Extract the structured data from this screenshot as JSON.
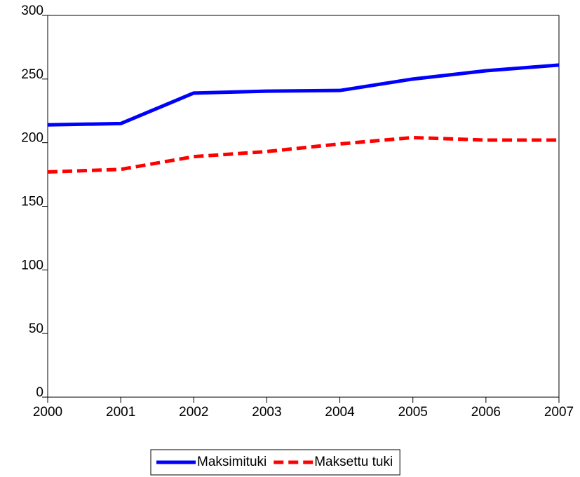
{
  "chart_data": {
    "type": "line",
    "x": [
      2000,
      2001,
      2002,
      2003,
      2004,
      2005,
      2006,
      2007
    ],
    "series": [
      {
        "name": "Maksimituki",
        "color": "#0000ff",
        "values": [
          214,
          215,
          239,
          240.5,
          241,
          250,
          256.5,
          261
        ]
      },
      {
        "name": "Maksettu tuki",
        "color": "#ff0000",
        "dashed": true,
        "values": [
          177,
          179,
          189,
          193,
          199,
          204,
          202,
          202
        ]
      }
    ],
    "xlim": [
      2000,
      2007
    ],
    "xticks": [
      2000,
      2001,
      2002,
      2003,
      2004,
      2005,
      2006,
      2007
    ],
    "ylim": [
      0,
      300
    ],
    "yticks": [
      0,
      50,
      100,
      150,
      200,
      250,
      300
    ],
    "legend": "bottom"
  }
}
